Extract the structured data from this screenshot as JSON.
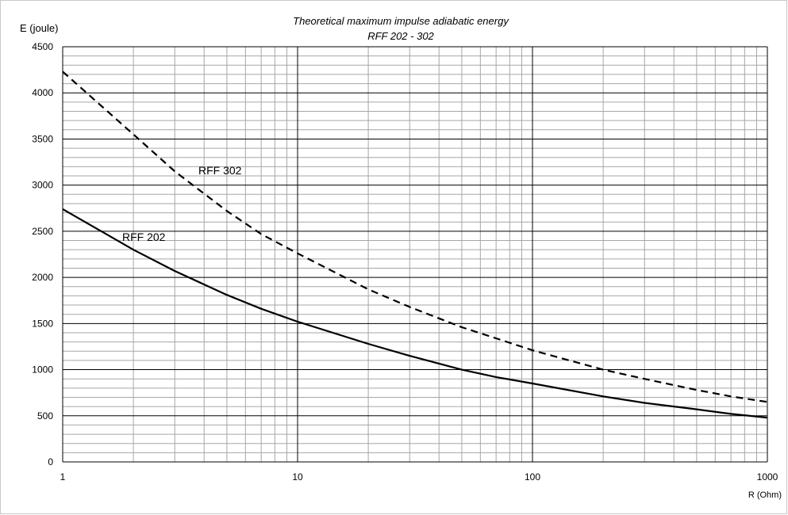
{
  "chart_data": {
    "type": "line",
    "title": "Theoretical maximum impulse adiabatic energy",
    "subtitle": "RFF 202 - 302",
    "ylabel": "E (joule)",
    "xlabel": "R (Ohm)",
    "x_scale": "log",
    "xlim": [
      1,
      1000
    ],
    "ylim": [
      0,
      4500
    ],
    "x_ticks": [
      "1",
      "10",
      "100",
      "1000"
    ],
    "y_ticks": [
      "0",
      "500",
      "1000",
      "1500",
      "2000",
      "2500",
      "3000",
      "3500",
      "4000",
      "4500"
    ],
    "grid": true,
    "series": [
      {
        "name": "RFF 202",
        "style": "solid",
        "x": [
          1,
          2,
          3,
          5,
          7,
          10,
          20,
          30,
          50,
          70,
          100,
          200,
          300,
          500,
          700,
          1000
        ],
        "values": [
          2740,
          2300,
          2070,
          1810,
          1660,
          1520,
          1280,
          1150,
          1000,
          920,
          850,
          710,
          640,
          570,
          520,
          480
        ]
      },
      {
        "name": "RFF 302",
        "style": "dashed",
        "x": [
          1,
          2,
          3,
          5,
          7,
          10,
          20,
          30,
          50,
          70,
          100,
          200,
          300,
          500,
          700,
          1000
        ],
        "values": [
          4230,
          3550,
          3150,
          2720,
          2470,
          2260,
          1870,
          1680,
          1460,
          1340,
          1210,
          1000,
          900,
          780,
          710,
          650
        ]
      }
    ],
    "colors": {
      "line": "#000000",
      "major_grid": "#000000",
      "minor_grid": "#a6a6a6"
    }
  }
}
